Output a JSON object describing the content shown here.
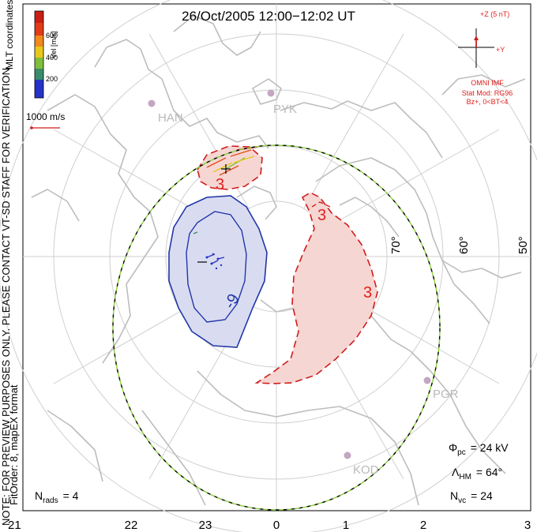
{
  "title": "26/Oct/2005 12:00−12:02 UT",
  "side_note": "NOTE: FOR PREVIEW PURPOSES ONLY. PLEASE CONTACT VT-SD STAFF FOR VERIFICATION.",
  "fit_note": "FitOrder: 8, mapEX format",
  "coord_label": "MLT coordinates",
  "colorbar": {
    "label": "Vel [m/s]",
    "ticks": [
      "600",
      "400",
      "200"
    ],
    "colors": [
      "#2632c8",
      "#3a8c6a",
      "#7fbf3c",
      "#e8c81c",
      "#f08a1c",
      "#e03c18",
      "#c81e14"
    ]
  },
  "ref_vector_label": "1000 m/s",
  "imf": {
    "z_label": "+Z (5 nT)",
    "y_label": "+Y",
    "source": "OMNI IMF",
    "model": "Stat Mod: RG96",
    "condition": "Bz+, 0<BT<4"
  },
  "lat_labels": [
    "70°",
    "60°",
    "50°"
  ],
  "stations": [
    "HAN",
    "PYK",
    "PGR",
    "KOD"
  ],
  "contour_labels": [
    "3",
    "3",
    "3",
    "-9"
  ],
  "params": {
    "phi_symbol": "Φ",
    "phi_sub": "pc",
    "phi_value": "= 24 kV",
    "lambda_symbol": "Λ",
    "lambda_sub": "HM",
    "lambda_value": "= 64°",
    "n_symbol": "N",
    "nvc_sub": "vc",
    "nvc_value": "= 24",
    "nrads_sub": "rads",
    "nrads_value": "= 4"
  },
  "mlt_ticks": [
    "21",
    "22",
    "23",
    "0",
    "1",
    "2",
    "3"
  ]
}
